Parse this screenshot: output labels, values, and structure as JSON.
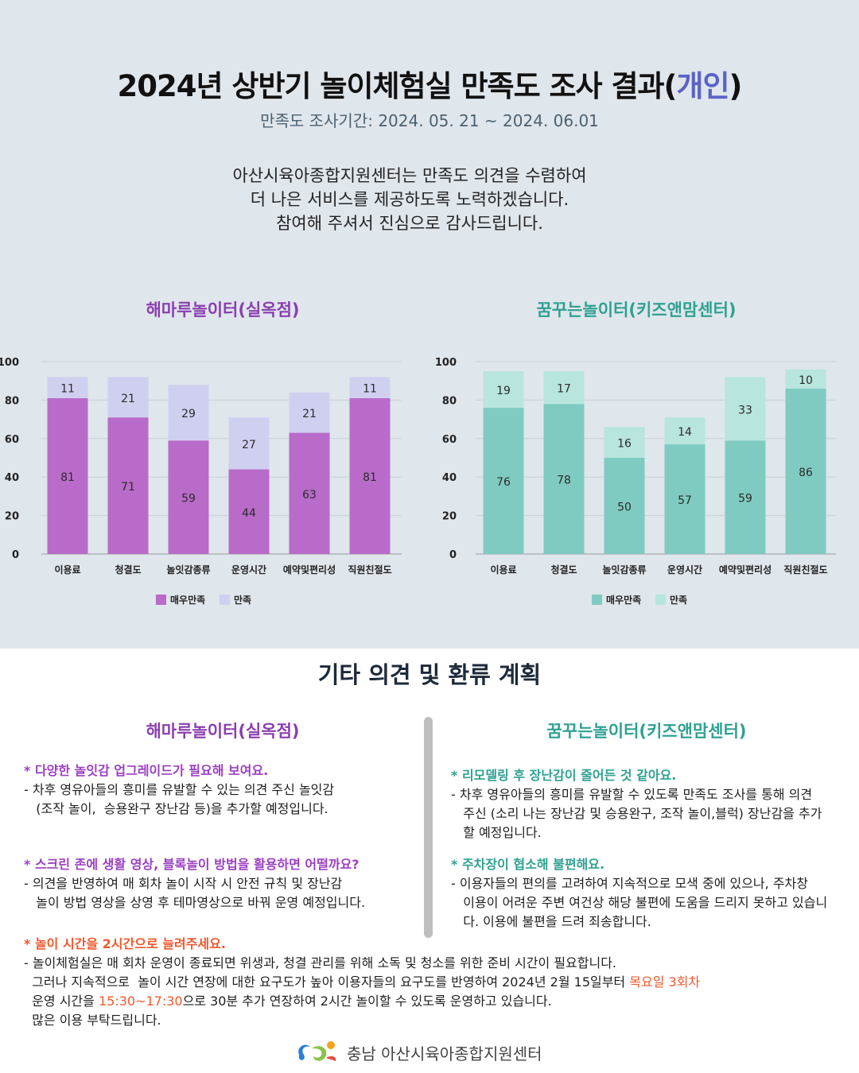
{
  "header": {
    "title_main": "2024년 상반기 놀이체험실 만족도 조사 결과(",
    "title_highlight": "개인",
    "title_end": ")",
    "period": "만족도 조사기간: 2024. 05. 21 ~ 2024. 06.01",
    "intro_lines": [
      "아산시육아종합지원센터는 만족도 의견을 수렴하여",
      "더 나은 서비스를 제공하도록 노력하겠습니다.",
      "참여해 주셔서 진심으로 감사드립니다."
    ]
  },
  "colors": {
    "left_strong": "#b96bc9",
    "left_light": "#cfd0f0",
    "right_strong": "#7fcbc1",
    "right_light": "#b8e5de",
    "accent_purple": "#8a3eb0",
    "accent_teal": "#2fa191",
    "accent_orange": "#f0582c"
  },
  "chart_data": [
    {
      "type": "bar",
      "stacked": true,
      "title": "해마루놀이터(실옥점)",
      "categories": [
        "이용료",
        "청결도",
        "놀잇감종류",
        "운영시간",
        "예약및편리성",
        "직원친절도"
      ],
      "series": [
        {
          "name": "매우만족",
          "values": [
            81,
            71,
            59,
            44,
            63,
            81
          ]
        },
        {
          "name": "만족",
          "values": [
            11,
            21,
            29,
            27,
            21,
            11
          ]
        }
      ],
      "yticks": [
        "0",
        "20",
        "40",
        "60",
        "80",
        "100"
      ],
      "ylim": [
        0,
        100
      ],
      "grid": true,
      "legend": "bottom"
    },
    {
      "type": "bar",
      "stacked": true,
      "title": "꿈꾸는놀이터(키즈앤맘센터)",
      "categories": [
        "이용료",
        "청결도",
        "놀잇감종류",
        "운영시간",
        "예약및편리성",
        "직원친절도"
      ],
      "series": [
        {
          "name": "매우만족",
          "values": [
            76,
            78,
            50,
            57,
            59,
            86
          ]
        },
        {
          "name": "만족",
          "values": [
            19,
            17,
            16,
            14,
            33,
            10
          ]
        }
      ],
      "yticks": [
        "0",
        "20",
        "40",
        "60",
        "80",
        "100"
      ],
      "ylim": [
        0,
        100
      ],
      "grid": true,
      "legend": "bottom"
    }
  ],
  "opinions": {
    "section_title": "기타 의견 및 환류 계획",
    "left_title": "해마루놀이터(실옥점)",
    "right_title": "꿈꾸는놀이터(키즈앤맘센터)",
    "left_items": [
      {
        "q": "* 다양한 놀잇감 업그레이드가 필요해 보여요.",
        "a": "- 차후 영유아들의 흥미를 유발할 수 있는 의견 주신 놀잇감\n   (조작 놀이,  승용완구 장난감 등)을 추가할 예정입니다."
      },
      {
        "q": "* 스크린 존에 생활 영상, 블록놀이 방법을 활용하면 어떨까요?",
        "a": "- 의견을 반영하여 매 회차 놀이 시작 시 안전 규칙 및 장난감\n   놀이 방법 영상을 상영 후 테마영상으로 바꿔 운영 예정입니다."
      }
    ],
    "right_items": [
      {
        "q": "* 리모델링 후 장난감이 줄어든 것 같아요.",
        "a": "- 차후 영유아들의 흥미를 유발할 수 있도록 만족도 조사를 통해 의견\n   주신 (소리 나는 장난감 및 승용완구, 조작 놀이,블럭) 장난감을 추가\n   할 예정입니다."
      },
      {
        "q": "* 주차장이 협소해 불편해요.",
        "a": "- 이용자들의 편의를 고려하여 지속적으로 모색 중에 있으나, 주차창\n   이용이 어려운 주변 여건상 해당 불편에 도움을 드리지 못하고 있습니\n   다. 이용에 불편을 드려 죄송합니다."
      }
    ],
    "bottom_item": {
      "q": "* 놀이 시간을 2시간으로 늘려주세요.",
      "line1": "- 놀이체험실은 매 회차 운영이 종료되면 위생과, 청결 관리를 위해 소독 및 청소를 위한 준비 시간이 필요합니다.",
      "line2_pre": "  그러나 지속적으로  놀이 시간 연장에 대한 요구도가 높아 이용자들의 요구도를 반영하여 2024년 2월 15일부터 ",
      "line2_hl": "목요일 3회차",
      "line3_pre": "  운영 시간을 ",
      "line3_hl": "15:30~17:30",
      "line3_post": "으로 30분 추가 연장하여 2시간 놀이할 수 있도록 운영하고 있습니다.",
      "line4": "  많은 이용 부탁드립니다."
    }
  },
  "footer": {
    "org": "충남  아산시육아종합지원센터",
    "logo_icon": "center-logo-icon"
  }
}
